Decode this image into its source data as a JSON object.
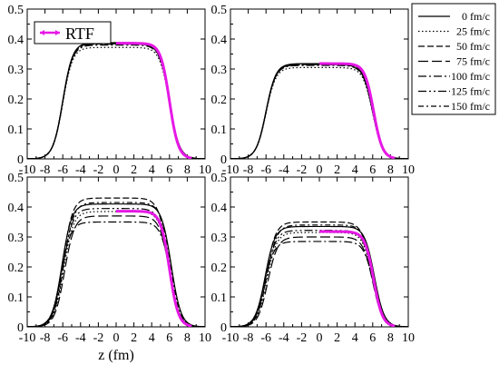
{
  "colors": {
    "rtf": "#e619e6",
    "line": "#000000",
    "background": "#ffffff"
  },
  "legend": {
    "entries": [
      {
        "label": "0 fm/c",
        "dash": ""
      },
      {
        "label": "25 fm/c",
        "dash": "1.5,2.5"
      },
      {
        "label": "50 fm/c",
        "dash": "7,3"
      },
      {
        "label": "75 fm/c",
        "dash": "11,4"
      },
      {
        "label": "100 fm/c",
        "dash": "9,3,2,3"
      },
      {
        "label": "125 fm/c",
        "dash": "9,3,2,3,2,3"
      },
      {
        "label": "150 fm/c",
        "dash": "6,3,2,3"
      }
    ],
    "rtf_label": "RTF"
  },
  "chart_data": [
    {
      "type": "line",
      "panel": "top-left",
      "xlim": [
        -10,
        10
      ],
      "ylim": [
        0,
        0.5
      ],
      "xticks": [
        "-10",
        "-8",
        "-6",
        "-4",
        "-2",
        "0",
        "2",
        "4",
        "6",
        "8",
        "10"
      ],
      "yticks": [
        "0",
        "0.1",
        "0.2",
        "0.3",
        "0.4",
        "0.5"
      ],
      "xlabel": "",
      "ylabel": "",
      "series": [
        {
          "name": "0 fm/c",
          "rho0": 0.388,
          "zl": 6.0,
          "zr": 6.0,
          "a": 0.55
        },
        {
          "name": "25 fm/c",
          "rho0": 0.372,
          "zl": 6.0,
          "zr": 6.0,
          "a": 0.55
        },
        {
          "name": "50 fm/c",
          "rho0": 0.385,
          "zl": 6.0,
          "zr": 6.0,
          "a": 0.55
        },
        {
          "name": "75 fm/c",
          "rho0": 0.386,
          "zl": 6.0,
          "zr": 6.0,
          "a": 0.55
        },
        {
          "name": "100 fm/c",
          "rho0": 0.38,
          "zl": 6.0,
          "zr": 6.0,
          "a": 0.55
        },
        {
          "name": "125 fm/c",
          "rho0": 0.383,
          "zl": 6.0,
          "zr": 6.0,
          "a": 0.55
        },
        {
          "name": "150 fm/c",
          "rho0": 0.384,
          "zl": 6.0,
          "zr": 6.0,
          "a": 0.55
        }
      ],
      "rtf": {
        "rho0": 0.386,
        "z0": 6.0,
        "a": 0.5,
        "x_from": 0.0,
        "x_to": 8.5
      }
    },
    {
      "type": "line",
      "panel": "top-right",
      "xlim": [
        -10,
        10
      ],
      "ylim": [
        0,
        0.5
      ],
      "xticks": [
        "-10",
        "-8",
        "-6",
        "-4",
        "-2",
        "0",
        "2",
        "4",
        "6",
        "8",
        "10"
      ],
      "yticks": [
        "0",
        "0.1",
        "0.2",
        "0.3",
        "0.4",
        "0.5"
      ],
      "xlabel": "",
      "ylabel": "",
      "series": [
        {
          "name": "0 fm/c",
          "rho0": 0.318,
          "zl": 6.0,
          "zr": 6.0,
          "a": 0.55
        },
        {
          "name": "25 fm/c",
          "rho0": 0.305,
          "zl": 6.0,
          "zr": 6.0,
          "a": 0.55
        },
        {
          "name": "50 fm/c",
          "rho0": 0.315,
          "zl": 6.0,
          "zr": 6.0,
          "a": 0.55
        },
        {
          "name": "75 fm/c",
          "rho0": 0.316,
          "zl": 6.0,
          "zr": 6.0,
          "a": 0.55
        },
        {
          "name": "100 fm/c",
          "rho0": 0.312,
          "zl": 6.0,
          "zr": 6.0,
          "a": 0.55
        },
        {
          "name": "125 fm/c",
          "rho0": 0.314,
          "zl": 6.0,
          "zr": 6.0,
          "a": 0.55
        },
        {
          "name": "150 fm/c",
          "rho0": 0.315,
          "zl": 6.0,
          "zr": 6.0,
          "a": 0.55
        }
      ],
      "rtf": {
        "rho0": 0.318,
        "z0": 6.1,
        "a": 0.5,
        "x_from": 0.0,
        "x_to": 8.5
      }
    },
    {
      "type": "line",
      "panel": "bottom-left",
      "xlim": [
        -10,
        10
      ],
      "ylim": [
        0,
        0.5
      ],
      "xticks": [
        "-10",
        "-8",
        "-6",
        "-4",
        "-2",
        "0",
        "2",
        "4",
        "6",
        "8",
        "10"
      ],
      "yticks": [
        "0",
        "0.1",
        "0.2",
        "0.3",
        "0.4",
        "0.5"
      ],
      "xlabel": "z (fm)",
      "ylabel": "",
      "series": [
        {
          "name": "0 fm/c",
          "rho0": 0.41,
          "zl": 6.1,
          "zr": 6.2,
          "a": 0.55
        },
        {
          "name": "25 fm/c",
          "rho0": 0.385,
          "zl": 5.9,
          "zr": 6.0,
          "a": 0.55
        },
        {
          "name": "50 fm/c",
          "rho0": 0.43,
          "zl": 6.0,
          "zr": 5.9,
          "a": 0.55
        },
        {
          "name": "75 fm/c",
          "rho0": 0.37,
          "zl": 5.8,
          "zr": 6.0,
          "a": 0.55
        },
        {
          "name": "100 fm/c",
          "rho0": 0.35,
          "zl": 6.2,
          "zr": 6.1,
          "a": 0.55
        },
        {
          "name": "125 fm/c",
          "rho0": 0.395,
          "zl": 6.0,
          "zr": 6.0,
          "a": 0.55
        },
        {
          "name": "150 fm/c",
          "rho0": 0.415,
          "zl": 5.9,
          "zr": 6.1,
          "a": 0.55
        }
      ],
      "rtf": {
        "rho0": 0.386,
        "z0": 6.0,
        "a": 0.5,
        "x_from": 0.0,
        "x_to": 8.5
      }
    },
    {
      "type": "line",
      "panel": "bottom-right",
      "xlim": [
        -10,
        10
      ],
      "ylim": [
        0,
        0.5
      ],
      "xticks": [
        "-10",
        "-8",
        "-6",
        "-4",
        "-2",
        "0",
        "2",
        "4",
        "6",
        "8",
        "10"
      ],
      "yticks": [
        "0",
        "0.1",
        "0.2",
        "0.3",
        "0.4",
        "0.5"
      ],
      "xlabel": "",
      "ylabel": "",
      "series": [
        {
          "name": "0 fm/c",
          "rho0": 0.335,
          "zl": 6.1,
          "zr": 6.2,
          "a": 0.55
        },
        {
          "name": "25 fm/c",
          "rho0": 0.315,
          "zl": 5.9,
          "zr": 6.0,
          "a": 0.55
        },
        {
          "name": "50 fm/c",
          "rho0": 0.35,
          "zl": 6.0,
          "zr": 5.9,
          "a": 0.55
        },
        {
          "name": "75 fm/c",
          "rho0": 0.3,
          "zl": 5.8,
          "zr": 6.0,
          "a": 0.55
        },
        {
          "name": "100 fm/c",
          "rho0": 0.285,
          "zl": 6.2,
          "zr": 6.1,
          "a": 0.55
        },
        {
          "name": "125 fm/c",
          "rho0": 0.322,
          "zl": 6.0,
          "zr": 6.0,
          "a": 0.55
        },
        {
          "name": "150 fm/c",
          "rho0": 0.34,
          "zl": 5.9,
          "zr": 6.1,
          "a": 0.55
        }
      ],
      "rtf": {
        "rho0": 0.318,
        "z0": 6.1,
        "a": 0.5,
        "x_from": 0.0,
        "x_to": 8.5
      }
    }
  ]
}
